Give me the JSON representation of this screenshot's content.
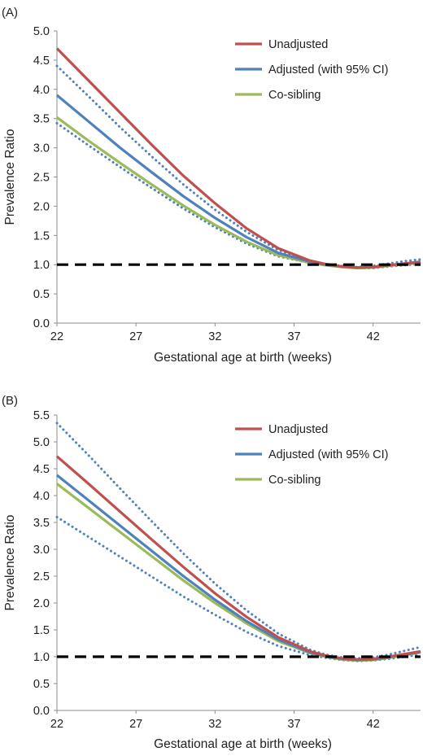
{
  "chart_data": [
    {
      "type": "line",
      "panel_label": "(A)",
      "xlabel": "Gestational age at birth (weeks)",
      "ylabel": "Prevalence Ratio",
      "xlim": [
        22,
        45
      ],
      "ylim": [
        0,
        5.0
      ],
      "x_ticks": [
        22,
        27,
        32,
        37,
        42
      ],
      "y_ticks": [
        "0.0",
        "0.5",
        "1.0",
        "1.5",
        "2.0",
        "2.5",
        "3.0",
        "3.5",
        "4.0",
        "4.5",
        "5.0"
      ],
      "grid": false,
      "legend_position": "top-right",
      "reference_line": {
        "y": 1.0,
        "style": "dashed",
        "color": "#000000"
      },
      "series": [
        {
          "name": "Unadjusted",
          "color": "#c0504d",
          "style": "solid",
          "x": [
            22,
            24,
            26,
            28,
            30,
            32,
            34,
            36,
            38,
            39,
            40,
            41,
            42,
            43,
            44,
            45
          ],
          "y": [
            4.7,
            4.15,
            3.6,
            3.05,
            2.52,
            2.05,
            1.62,
            1.28,
            1.07,
            1.01,
            0.97,
            0.95,
            0.96,
            0.99,
            1.02,
            1.04
          ]
        },
        {
          "name": "Adjusted (with 95% CI)",
          "color": "#4f81bd",
          "style": "solid",
          "x": [
            22,
            24,
            26,
            28,
            30,
            32,
            34,
            36,
            38,
            39,
            40,
            41,
            42,
            43,
            44,
            45
          ],
          "y": [
            3.9,
            3.45,
            3.0,
            2.58,
            2.17,
            1.8,
            1.47,
            1.2,
            1.05,
            1.0,
            0.97,
            0.95,
            0.96,
            0.99,
            1.02,
            1.05
          ]
        },
        {
          "name": "Co-sibling",
          "color": "#9bbb59",
          "style": "solid",
          "x": [
            22,
            24,
            26,
            28,
            30,
            32,
            34,
            36,
            38,
            39,
            40,
            41,
            42,
            43,
            44,
            45
          ],
          "y": [
            3.52,
            3.12,
            2.74,
            2.37,
            2.01,
            1.68,
            1.39,
            1.16,
            1.03,
            0.99,
            0.96,
            0.94,
            0.95,
            0.98,
            1.01,
            1.03
          ]
        },
        {
          "color": "#4f81bd",
          "style": "dotted",
          "x": [
            22,
            24,
            26,
            28,
            30,
            32,
            34,
            36,
            38,
            39,
            40,
            41,
            42,
            43,
            44,
            45
          ],
          "y": [
            4.4,
            3.88,
            3.35,
            2.85,
            2.37,
            1.94,
            1.56,
            1.25,
            1.07,
            1.01,
            0.98,
            0.96,
            0.98,
            1.02,
            1.06,
            1.09
          ]
        },
        {
          "color": "#4f81bd",
          "style": "dotted",
          "x": [
            22,
            24,
            26,
            28,
            30,
            32,
            34,
            36,
            38,
            39,
            40,
            41,
            42,
            43,
            44,
            45
          ],
          "y": [
            3.42,
            3.04,
            2.67,
            2.31,
            1.96,
            1.64,
            1.36,
            1.14,
            1.03,
            0.99,
            0.96,
            0.94,
            0.94,
            0.97,
            0.99,
            1.01
          ]
        }
      ]
    },
    {
      "type": "line",
      "panel_label": "(B)",
      "xlabel": "Gestational age at birth (weeks)",
      "ylabel": "Prevalence Ratio",
      "xlim": [
        22,
        45
      ],
      "ylim": [
        0,
        5.5
      ],
      "x_ticks": [
        22,
        27,
        32,
        37,
        42
      ],
      "y_ticks": [
        "0.0",
        "0.5",
        "1.0",
        "1.5",
        "2.0",
        "2.5",
        "3.0",
        "3.5",
        "4.0",
        "4.5",
        "5.0",
        "5.5"
      ],
      "grid": false,
      "legend_position": "top-right",
      "reference_line": {
        "y": 1.0,
        "style": "dashed",
        "color": "#000000"
      },
      "series": [
        {
          "name": "Unadjusted",
          "color": "#c0504d",
          "style": "solid",
          "x": [
            22,
            24,
            26,
            28,
            30,
            32,
            34,
            36,
            38,
            39,
            40,
            41,
            42,
            43,
            44,
            45
          ],
          "y": [
            4.73,
            4.22,
            3.7,
            3.18,
            2.67,
            2.18,
            1.74,
            1.36,
            1.1,
            1.02,
            0.97,
            0.95,
            0.96,
            1.0,
            1.05,
            1.1
          ]
        },
        {
          "name": "Adjusted (with 95% CI)",
          "color": "#4f81bd",
          "style": "solid",
          "x": [
            22,
            24,
            26,
            28,
            30,
            32,
            34,
            36,
            38,
            39,
            40,
            41,
            42,
            43,
            44,
            45
          ],
          "y": [
            4.38,
            3.91,
            3.44,
            2.97,
            2.5,
            2.06,
            1.66,
            1.32,
            1.08,
            1.01,
            0.96,
            0.94,
            0.95,
            0.99,
            1.04,
            1.09
          ]
        },
        {
          "name": "Co-sibling",
          "color": "#9bbb59",
          "style": "solid",
          "x": [
            22,
            24,
            26,
            28,
            30,
            32,
            34,
            36,
            38,
            39,
            40,
            41,
            42,
            43,
            44,
            45
          ],
          "y": [
            4.22,
            3.77,
            3.32,
            2.87,
            2.42,
            2.0,
            1.62,
            1.29,
            1.07,
            1.0,
            0.95,
            0.93,
            0.94,
            0.98,
            1.03,
            1.08
          ]
        },
        {
          "color": "#4f81bd",
          "style": "dotted",
          "x": [
            22,
            24,
            26,
            28,
            30,
            32,
            34,
            36,
            38,
            39,
            40,
            41,
            42,
            43,
            44,
            45
          ],
          "y": [
            5.35,
            4.75,
            4.13,
            3.52,
            2.92,
            2.36,
            1.86,
            1.43,
            1.13,
            1.04,
            0.99,
            0.97,
            0.99,
            1.04,
            1.11,
            1.18
          ]
        },
        {
          "color": "#4f81bd",
          "style": "dotted",
          "x": [
            22,
            24,
            26,
            28,
            30,
            32,
            34,
            36,
            38,
            39,
            40,
            41,
            42,
            43,
            44,
            45
          ],
          "y": [
            3.6,
            3.23,
            2.86,
            2.49,
            2.12,
            1.78,
            1.46,
            1.2,
            1.03,
            0.98,
            0.94,
            0.92,
            0.93,
            0.96,
            1.0,
            1.04
          ]
        }
      ]
    }
  ]
}
